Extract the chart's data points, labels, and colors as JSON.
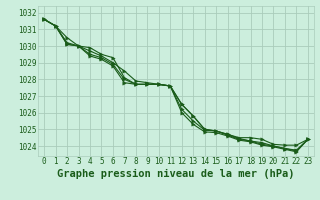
{
  "title": "Graphe pression niveau de la mer (hPa)",
  "background_color": "#b8ddc8",
  "plot_bg_color": "#cceedd",
  "grid_color": "#aaccbb",
  "line_color": "#1a5c1a",
  "marker_color": "#1a5c1a",
  "x_ticks": [
    0,
    1,
    2,
    3,
    4,
    5,
    6,
    7,
    8,
    9,
    10,
    11,
    12,
    13,
    14,
    15,
    16,
    17,
    18,
    19,
    20,
    21,
    22,
    23
  ],
  "y_ticks": [
    1024,
    1025,
    1026,
    1027,
    1028,
    1029,
    1030,
    1031,
    1032
  ],
  "ylim": [
    1023.4,
    1032.4
  ],
  "xlim": [
    -0.5,
    23.5
  ],
  "series": [
    [
      1031.6,
      1031.2,
      1030.5,
      1030.0,
      1029.9,
      1029.5,
      1029.3,
      1028.1,
      1027.7,
      1027.7,
      1027.7,
      1027.6,
      1026.5,
      1025.8,
      1025.0,
      1024.9,
      1024.7,
      1024.5,
      1024.5,
      1024.4,
      1024.1,
      1024.05,
      1024.05,
      1024.4
    ],
    [
      1031.6,
      1031.2,
      1030.2,
      1030.0,
      1029.7,
      1029.4,
      1029.0,
      1028.5,
      1027.9,
      1027.8,
      1027.7,
      1027.6,
      1026.5,
      1025.8,
      1025.0,
      1024.9,
      1024.7,
      1024.45,
      1024.3,
      1024.2,
      1024.0,
      1023.85,
      1023.75,
      1024.4
    ],
    [
      1031.6,
      1031.2,
      1030.1,
      1030.0,
      1029.5,
      1029.3,
      1028.9,
      1028.0,
      1027.7,
      1027.7,
      1027.7,
      1027.6,
      1026.2,
      1025.5,
      1024.95,
      1024.9,
      1024.65,
      1024.4,
      1024.3,
      1024.1,
      1024.0,
      1023.85,
      1023.7,
      1024.4
    ],
    [
      1031.6,
      1031.2,
      1030.1,
      1030.0,
      1029.4,
      1029.2,
      1028.8,
      1027.8,
      1027.7,
      1027.7,
      1027.7,
      1027.6,
      1026.0,
      1025.3,
      1024.85,
      1024.8,
      1024.6,
      1024.35,
      1024.25,
      1024.05,
      1023.95,
      1023.8,
      1023.65,
      1024.4
    ]
  ],
  "marker_size": 2.5,
  "line_width": 0.8,
  "tick_fontsize": 5.5,
  "xlabel_fontsize": 7.5
}
